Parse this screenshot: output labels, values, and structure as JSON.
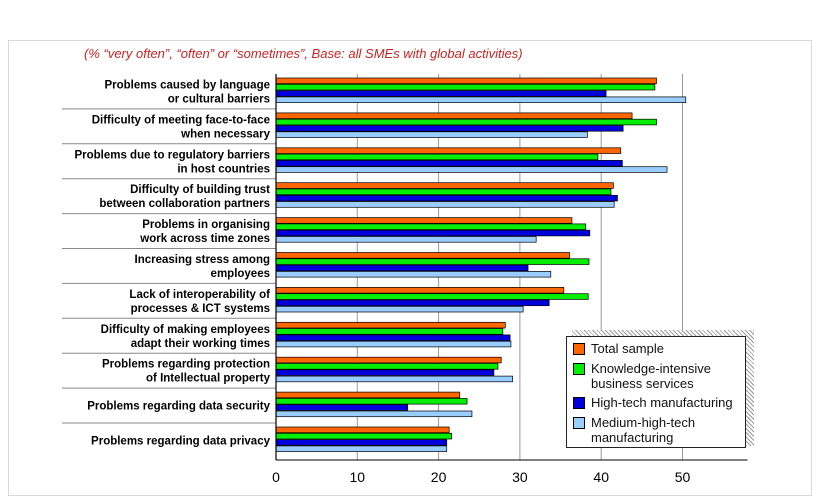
{
  "chart_data": {
    "type": "bar",
    "orientation": "horizontal",
    "subtitle": "(% “very often”, “often” or “sometimes”, Base: all SMEs with global activities)",
    "categories": [
      "Problems caused by language\nor cultural barriers",
      "Difficulty of meeting face-to-face\nwhen necessary",
      "Problems due to regulatory barriers\nin host countries",
      "Difficulty of building trust\nbetween collaboration partners",
      "Problems in organising\nwork across time zones",
      "Increasing stress among\nemployees",
      "Lack of interoperability of\nprocesses & ICT systems",
      "Difficulty of making employees\nadapt their working times",
      "Problems regarding protection\nof Intellectual property",
      "Problems regarding data security",
      "Problems regarding data privacy"
    ],
    "series": [
      {
        "name": "Total sample",
        "color": "#ff6600",
        "values": [
          46.8,
          43.8,
          42.4,
          41.5,
          36.4,
          36.1,
          35.4,
          28.2,
          27.7,
          22.6,
          21.3
        ]
      },
      {
        "name": "Knowledge-intensive\nbusiness services",
        "color": "#00ee00",
        "values": [
          46.6,
          46.8,
          39.6,
          41.2,
          38.1,
          38.5,
          38.4,
          27.9,
          27.3,
          23.5,
          21.6
        ]
      },
      {
        "name": "High-tech manufacturing",
        "color": "#0000dd",
        "values": [
          40.6,
          42.7,
          42.6,
          42.0,
          38.6,
          31.0,
          33.6,
          28.8,
          26.8,
          16.2,
          21.0
        ]
      },
      {
        "name": "Medium-high-tech\nmanufacturing",
        "color": "#99ccff",
        "values": [
          50.4,
          38.3,
          48.1,
          41.6,
          32.0,
          33.8,
          30.4,
          28.9,
          29.1,
          24.1,
          21.0
        ]
      }
    ],
    "xlim": [
      0,
      58
    ],
    "xticks": [
      0,
      10,
      20,
      30,
      40,
      50
    ],
    "grid": true,
    "legend_position": "bottom-right"
  }
}
